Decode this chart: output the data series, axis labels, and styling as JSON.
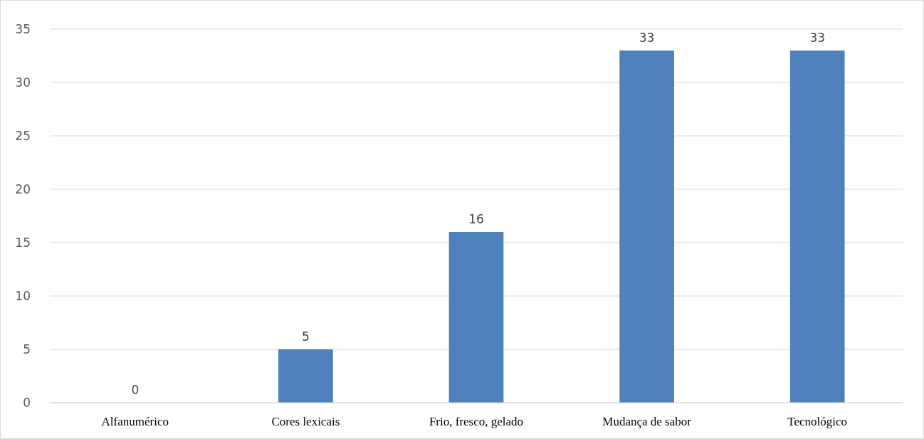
{
  "chart_data": {
    "type": "bar",
    "categories": [
      "Alfanumérico",
      "Cores lexicais",
      "Frio, fresco, gelado",
      "Mudança de sabor",
      "Tecnológico"
    ],
    "values": [
      0,
      5,
      16,
      33,
      33
    ],
    "color": "#4f81bd",
    "ylim": [
      0,
      35
    ],
    "yticks": [
      0,
      5,
      10,
      15,
      20,
      25,
      30,
      35
    ],
    "grid": "y",
    "data_labels": true
  }
}
